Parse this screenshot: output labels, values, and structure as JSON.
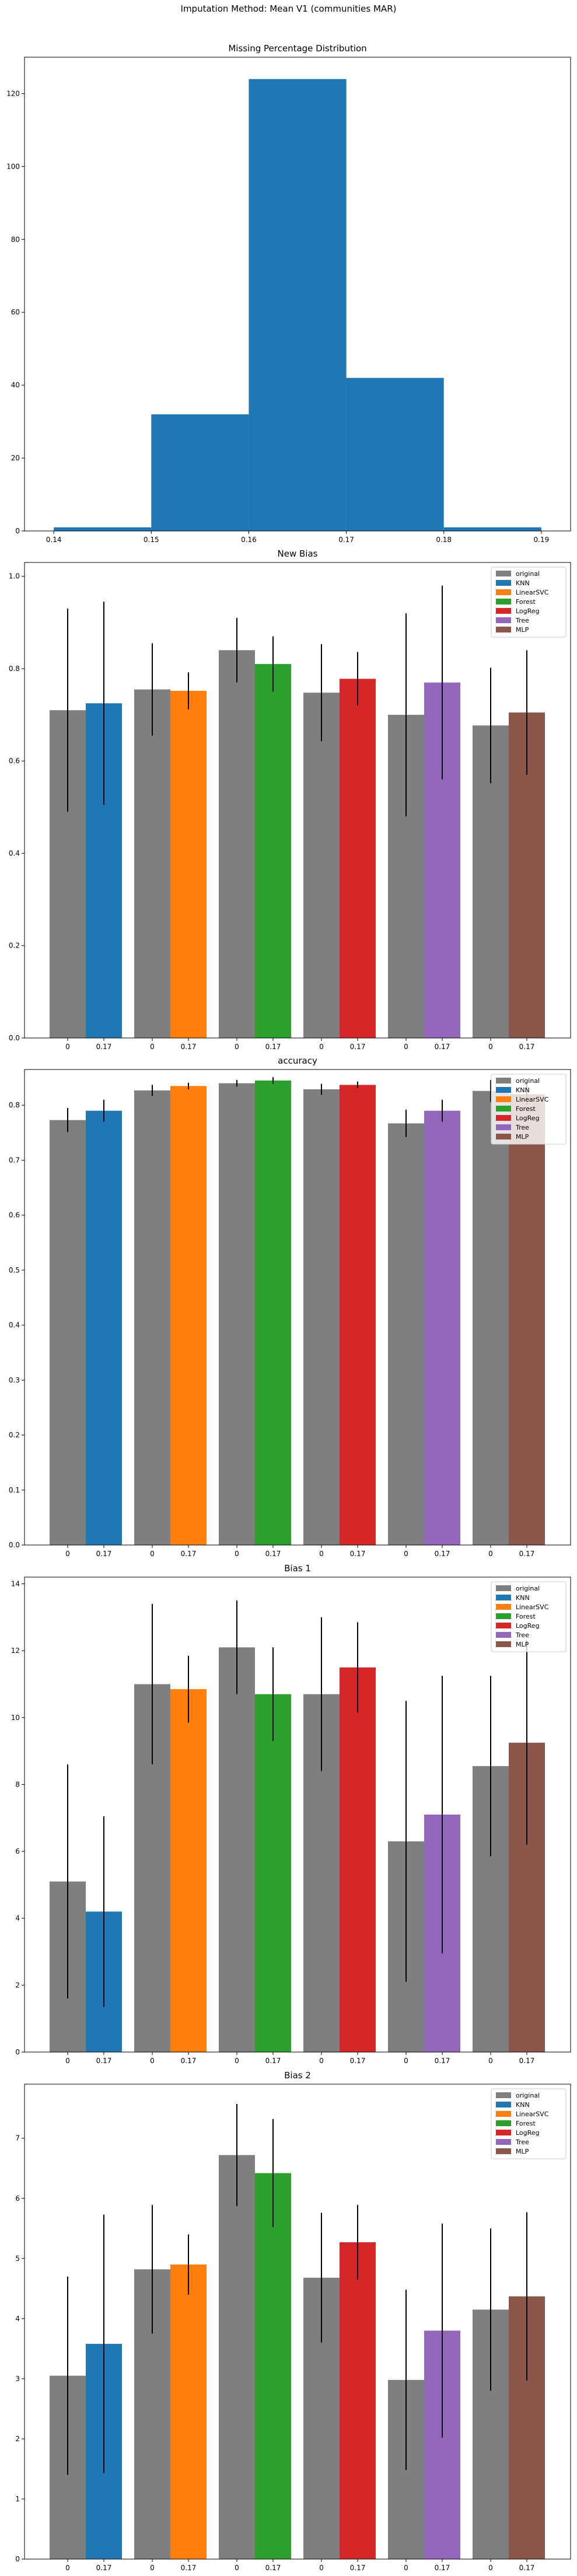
{
  "suptitle": "Imputation Method: Mean V1 (communities MAR)",
  "colors": {
    "original": "#7f7f7f",
    "KNN": "#1f77b4",
    "LinearSVC": "#ff7f0e",
    "Forest": "#2ca02c",
    "LogReg": "#d62728",
    "Tree": "#9467bd",
    "MLP": "#8c564b",
    "error_bar": "#000000",
    "axes": "#000000"
  },
  "chart_data": [
    {
      "type": "bar",
      "subtype": "histogram",
      "title": "Missing Percentage Distribution",
      "xlabel": "",
      "ylabel": "",
      "xlim": [
        0.137,
        0.193
      ],
      "ylim": [
        0,
        130
      ],
      "xticks": [
        "0.14",
        "0.15",
        "0.16",
        "0.17",
        "0.18",
        "0.19"
      ],
      "xtick_values": [
        0.14,
        0.15,
        0.16,
        0.17,
        0.18,
        0.19
      ],
      "yticks": [
        "0",
        "20",
        "40",
        "60",
        "80",
        "100",
        "120"
      ],
      "ytick_values": [
        0,
        20,
        40,
        60,
        80,
        100,
        120
      ],
      "bins": [
        {
          "start": 0.14,
          "end": 0.15,
          "count": 1
        },
        {
          "start": 0.15,
          "end": 0.16,
          "count": 32
        },
        {
          "start": 0.16,
          "end": 0.17,
          "count": 124
        },
        {
          "start": 0.17,
          "end": 0.18,
          "count": 42
        },
        {
          "start": 0.18,
          "end": 0.19,
          "count": 1
        }
      ],
      "color": "#1f77b4"
    },
    {
      "type": "bar",
      "title": "New Bias",
      "xlabel": "",
      "ylabel": "",
      "ylim": [
        0,
        1.03
      ],
      "yticks": [
        "0.0",
        "0.2",
        "0.4",
        "0.6",
        "0.8",
        "1.0"
      ],
      "ytick_values": [
        0,
        0.2,
        0.4,
        0.6,
        0.8,
        1.0
      ],
      "legend_position": "top-right",
      "legend": [
        "original",
        "KNN",
        "LinearSVC",
        "Forest",
        "LogReg",
        "Tree",
        "MLP"
      ],
      "groups": [
        {
          "model": "KNN",
          "labels": [
            "0",
            "0.17"
          ],
          "original": {
            "value": 0.71,
            "err": 0.22
          },
          "imputed": {
            "value": 0.725,
            "err": 0.22
          }
        },
        {
          "model": "LinearSVC",
          "labels": [
            "0",
            "0.17"
          ],
          "original": {
            "value": 0.755,
            "err": 0.1
          },
          "imputed": {
            "value": 0.752,
            "err": 0.04
          }
        },
        {
          "model": "Forest",
          "labels": [
            "0",
            "0.17"
          ],
          "original": {
            "value": 0.84,
            "err": 0.07
          },
          "imputed": {
            "value": 0.81,
            "err": 0.06
          }
        },
        {
          "model": "LogReg",
          "labels": [
            "0",
            "0.17"
          ],
          "original": {
            "value": 0.748,
            "err": 0.105
          },
          "imputed": {
            "value": 0.778,
            "err": 0.058
          }
        },
        {
          "model": "Tree",
          "labels": [
            "0",
            "0.17"
          ],
          "original": {
            "value": 0.7,
            "err": 0.22
          },
          "imputed": {
            "value": 0.77,
            "err": 0.21
          }
        },
        {
          "model": "MLP",
          "labels": [
            "0",
            "0.17"
          ],
          "original": {
            "value": 0.677,
            "err": 0.125
          },
          "imputed": {
            "value": 0.705,
            "err": 0.135
          }
        }
      ]
    },
    {
      "type": "bar",
      "title": "accuracy",
      "xlabel": "",
      "ylabel": "",
      "ylim": [
        0,
        0.865
      ],
      "yticks": [
        "0.0",
        "0.1",
        "0.2",
        "0.3",
        "0.4",
        "0.5",
        "0.6",
        "0.7",
        "0.8"
      ],
      "ytick_values": [
        0,
        0.1,
        0.2,
        0.3,
        0.4,
        0.5,
        0.6,
        0.7,
        0.8
      ],
      "legend_position": "top-right",
      "legend": [
        "original",
        "KNN",
        "LinearSVC",
        "Forest",
        "LogReg",
        "Tree",
        "MLP"
      ],
      "groups": [
        {
          "model": "KNN",
          "labels": [
            "0",
            "0.17"
          ],
          "original": {
            "value": 0.773,
            "err": 0.022
          },
          "imputed": {
            "value": 0.79,
            "err": 0.02
          }
        },
        {
          "model": "LinearSVC",
          "labels": [
            "0",
            "0.17"
          ],
          "original": {
            "value": 0.827,
            "err": 0.01
          },
          "imputed": {
            "value": 0.835,
            "err": 0.006
          }
        },
        {
          "model": "Forest",
          "labels": [
            "0",
            "0.17"
          ],
          "original": {
            "value": 0.84,
            "err": 0.006
          },
          "imputed": {
            "value": 0.845,
            "err": 0.006
          }
        },
        {
          "model": "LogReg",
          "labels": [
            "0",
            "0.17"
          ],
          "original": {
            "value": 0.829,
            "err": 0.01
          },
          "imputed": {
            "value": 0.837,
            "err": 0.006
          }
        },
        {
          "model": "Tree",
          "labels": [
            "0",
            "0.17"
          ],
          "original": {
            "value": 0.767,
            "err": 0.025
          },
          "imputed": {
            "value": 0.79,
            "err": 0.02
          }
        },
        {
          "model": "MLP",
          "labels": [
            "0",
            "0.17"
          ],
          "original": {
            "value": 0.826,
            "err": 0.02
          },
          "imputed": {
            "value": 0.82,
            "err": 0.02
          }
        }
      ]
    },
    {
      "type": "bar",
      "title": "Bias 1",
      "xlabel": "",
      "ylabel": "",
      "ylim": [
        0,
        14.2
      ],
      "yticks": [
        "0",
        "2",
        "4",
        "6",
        "8",
        "10",
        "12",
        "14"
      ],
      "ytick_values": [
        0,
        2,
        4,
        6,
        8,
        10,
        12,
        14
      ],
      "legend_position": "top-right",
      "legend": [
        "original",
        "KNN",
        "LinearSVC",
        "Forest",
        "LogReg",
        "Tree",
        "MLP"
      ],
      "groups": [
        {
          "model": "KNN",
          "labels": [
            "0",
            "0.17"
          ],
          "original": {
            "value": 5.1,
            "err": 3.5
          },
          "imputed": {
            "value": 4.2,
            "err": 2.85
          }
        },
        {
          "model": "LinearSVC",
          "labels": [
            "0",
            "0.17"
          ],
          "original": {
            "value": 11.0,
            "err": 2.4
          },
          "imputed": {
            "value": 10.85,
            "err": 1.0
          }
        },
        {
          "model": "Forest",
          "labels": [
            "0",
            "0.17"
          ],
          "original": {
            "value": 12.1,
            "err": 1.4
          },
          "imputed": {
            "value": 10.7,
            "err": 1.4
          }
        },
        {
          "model": "LogReg",
          "labels": [
            "0",
            "0.17"
          ],
          "original": {
            "value": 10.7,
            "err": 2.3
          },
          "imputed": {
            "value": 11.5,
            "err": 1.35
          }
        },
        {
          "model": "Tree",
          "labels": [
            "0",
            "0.17"
          ],
          "original": {
            "value": 6.3,
            "err": 4.2
          },
          "imputed": {
            "value": 7.1,
            "err": 4.15
          }
        },
        {
          "model": "MLP",
          "labels": [
            "0",
            "0.17"
          ],
          "original": {
            "value": 8.55,
            "err": 2.7
          },
          "imputed": {
            "value": 9.25,
            "err": 3.05
          }
        }
      ]
    },
    {
      "type": "bar",
      "title": "Bias 2",
      "xlabel": "",
      "ylabel": "",
      "ylim": [
        0,
        7.9
      ],
      "yticks": [
        "0",
        "1",
        "2",
        "3",
        "4",
        "5",
        "6",
        "7"
      ],
      "ytick_values": [
        0,
        1,
        2,
        3,
        4,
        5,
        6,
        7
      ],
      "legend_position": "top-right",
      "legend": [
        "original",
        "KNN",
        "LinearSVC",
        "Forest",
        "LogReg",
        "Tree",
        "MLP"
      ],
      "groups": [
        {
          "model": "KNN",
          "labels": [
            "0",
            "0.17"
          ],
          "original": {
            "value": 3.05,
            "err": 1.65
          },
          "imputed": {
            "value": 3.58,
            "err": 2.15
          }
        },
        {
          "model": "LinearSVC",
          "labels": [
            "0",
            "0.17"
          ],
          "original": {
            "value": 4.82,
            "err": 1.07
          },
          "imputed": {
            "value": 4.9,
            "err": 0.5
          }
        },
        {
          "model": "Forest",
          "labels": [
            "0",
            "0.17"
          ],
          "original": {
            "value": 6.72,
            "err": 0.85
          },
          "imputed": {
            "value": 6.42,
            "err": 0.9
          }
        },
        {
          "model": "LogReg",
          "labels": [
            "0",
            "0.17"
          ],
          "original": {
            "value": 4.68,
            "err": 1.08
          },
          "imputed": {
            "value": 5.27,
            "err": 0.62
          }
        },
        {
          "model": "Tree",
          "labels": [
            "0",
            "0.17"
          ],
          "original": {
            "value": 2.98,
            "err": 1.5
          },
          "imputed": {
            "value": 3.8,
            "err": 1.78
          }
        },
        {
          "model": "MLP",
          "labels": [
            "0",
            "0.17"
          ],
          "original": {
            "value": 4.15,
            "err": 1.35
          },
          "imputed": {
            "value": 4.37,
            "err": 1.4
          }
        }
      ]
    }
  ]
}
